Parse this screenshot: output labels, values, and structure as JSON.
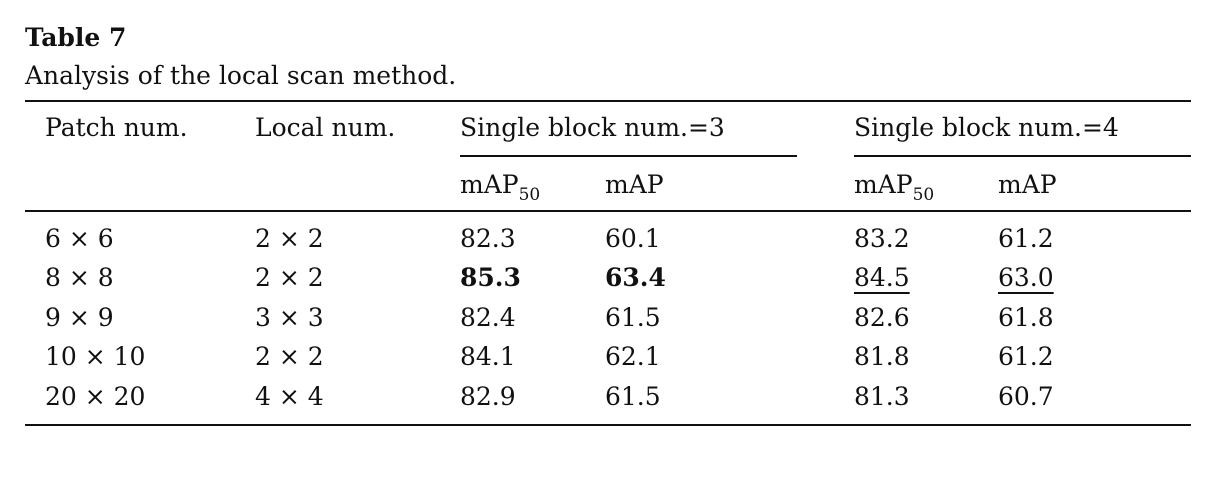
{
  "caption": {
    "label": "Table 7",
    "text": "Analysis of the local scan method."
  },
  "header": {
    "patch": "Patch num.",
    "local": "Local num.",
    "group3": "Single block num.=3",
    "group4": "Single block num.=4",
    "map50_base": "mAP",
    "map50_sub": "50",
    "map": "mAP"
  },
  "rows": [
    {
      "patch": "6 × 6",
      "local": "2 × 2",
      "b3_map50": "82.3",
      "b3_map": "60.1",
      "b4_map50": "83.2",
      "b4_map": "61.2"
    },
    {
      "patch": "8 × 8",
      "local": "2 × 2",
      "b3_map50": "85.3",
      "b3_map": "63.4",
      "b4_map50": "84.5",
      "b4_map": "63.0"
    },
    {
      "patch": "9 × 9",
      "local": "3 × 3",
      "b3_map50": "82.4",
      "b3_map": "61.5",
      "b4_map50": "82.6",
      "b4_map": "61.8"
    },
    {
      "patch": "10 × 10",
      "local": "2 × 2",
      "b3_map50": "84.1",
      "b3_map": "62.1",
      "b4_map50": "81.8",
      "b4_map": "61.2"
    },
    {
      "patch": "20 × 20",
      "local": "4 × 4",
      "b3_map50": "82.9",
      "b3_map": "61.5",
      "b4_map50": "81.3",
      "b4_map": "60.7"
    }
  ]
}
